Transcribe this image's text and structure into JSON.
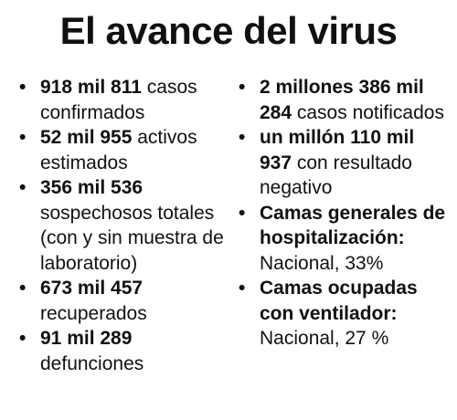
{
  "title": "El avance del virus",
  "bullet_glyph": "•",
  "left_column": [
    {
      "strong": "918 mil 811",
      "text": " casos confirmados"
    },
    {
      "strong": "52 mil 955",
      "text": " activos estimados"
    },
    {
      "strong": "356 mil 536",
      "text": " sospechosos totales (con y sin muestra de laboratorio)"
    },
    {
      "strong": "673 mil 457",
      "text": " recuperados"
    },
    {
      "strong": "91 mil 289",
      "text": " defunciones"
    }
  ],
  "right_column": [
    {
      "strong": "2 millones 386 mil 284",
      "text": " casos notificados"
    },
    {
      "strong": "un millón 110 mil 937",
      "text": " con resultado negativo"
    },
    {
      "strong": "Camas generales de hospitalización:",
      "text": " Nacional, 33%"
    },
    {
      "strong": "Camas ocupadas con ventilador:",
      "text": " Nacional, 27 %"
    }
  ]
}
